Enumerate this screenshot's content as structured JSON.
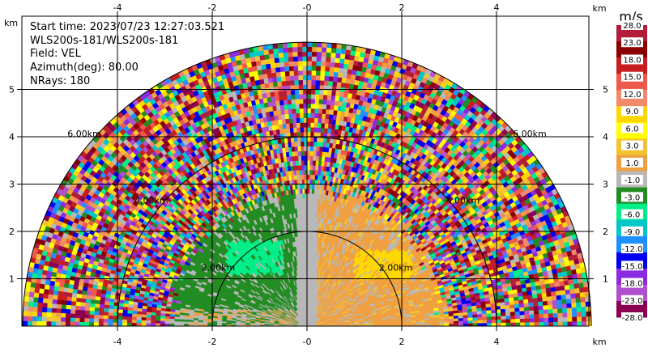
{
  "info": {
    "start_time": "Start time: 2023/07/23 12:27:03.521",
    "site": "WLS200s-181/WLS200s-181",
    "field": "Field: VEL",
    "azimuth": "Azimuth(deg): 80.00",
    "nrays": "NRays: 180"
  },
  "chart_data": {
    "type": "heatmap",
    "subtype": "radar-ppi-half-disk",
    "field": "VEL",
    "x_unit": "km",
    "y_unit": "km",
    "xlim": [
      -6,
      6
    ],
    "ylim": [
      0,
      6
    ],
    "x_ticks": [
      "-4",
      "-2",
      "-0",
      "2",
      "4"
    ],
    "x_tick_values": [
      -4,
      -2,
      0,
      2,
      4
    ],
    "y_ticks": [
      "1",
      "2",
      "3",
      "4",
      "5"
    ],
    "y_tick_values": [
      1,
      2,
      3,
      4,
      5
    ],
    "range_rings": [
      {
        "label": "2.00km",
        "radius": 2
      },
      {
        "label": "4.00km",
        "radius": 4
      },
      {
        "label": "6.00km",
        "radius": 6
      }
    ],
    "max_range_km": 6,
    "colorbar": {
      "unit": "m/s",
      "ticks": [
        "28.0",
        "23.0",
        "18.0",
        "15.0",
        "12.0",
        "9.0",
        "6.0",
        "3.0",
        "1.0",
        "-1.0",
        "-3.0",
        "-6.0",
        "-9.0",
        "-12.0",
        "-15.0",
        "-18.0",
        "-23.0",
        "-28.0"
      ],
      "colors": [
        "#b21e3a",
        "#8b0000",
        "#c81e1e",
        "#ee5a4a",
        "#f08a6a",
        "#ffd700",
        "#ffff00",
        "#f4c430",
        "#f0a040",
        "#b8b8b8",
        "#228b22",
        "#00ee88",
        "#00c8c8",
        "#1e90ff",
        "#0000ee",
        "#8a2be2",
        "#b050d0",
        "#8b0050"
      ]
    },
    "observed_regions": [
      {
        "description": "near-zero clutter along north axis",
        "x_range_km": [
          -0.2,
          0.3
        ],
        "y_range_km": [
          0,
          3.0
        ],
        "value_ms": 0
      },
      {
        "description": "negative radial velocity (west)",
        "x_range_km": [
          -2.5,
          -0.2
        ],
        "y_range_km": [
          0.4,
          2.6
        ],
        "value_ms": -4
      },
      {
        "description": "strong negative core",
        "x_range_km": [
          -1.7,
          -0.5
        ],
        "y_range_km": [
          1.1,
          1.8
        ],
        "value_ms": -7
      },
      {
        "description": "positive radial velocity (east)",
        "x_range_km": [
          0.3,
          2.6
        ],
        "y_range_km": [
          0.4,
          2.4
        ],
        "value_ms": 2
      },
      {
        "description": "strong positive core",
        "x_range_km": [
          1.0,
          2.2
        ],
        "y_range_km": [
          1.0,
          1.6
        ],
        "value_ms": 5
      },
      {
        "description": "noisy far range",
        "r_range_km": [
          2.6,
          6.0
        ],
        "value_ms": "random"
      }
    ]
  }
}
